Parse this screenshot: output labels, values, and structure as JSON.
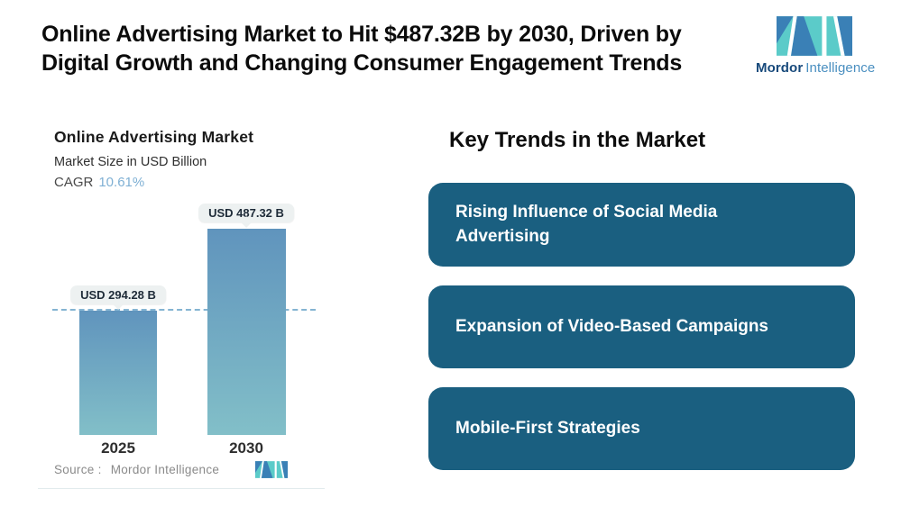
{
  "header": {
    "title_line1": "Online Advertising Market to Hit $487.32B by 2030, Driven by",
    "title_line2": "Digital Growth and Changing Consumer Engagement Trends",
    "logo": {
      "brand_bold": "Mordor",
      "brand_light": "Intelligence"
    }
  },
  "chart": {
    "title": "Online Advertising Market",
    "subtitle": "Market Size in USD Billion",
    "cagr_label": "CAGR",
    "cagr_value": "10.61%",
    "source_label": "Source :",
    "source_value": "Mordor Intelligence"
  },
  "chart_data": {
    "type": "bar",
    "title": "Online Advertising Market",
    "subtitle": "Market Size in USD Billion",
    "cagr": "10.61%",
    "categories": [
      "2025",
      "2030"
    ],
    "values": [
      294.28,
      487.32
    ],
    "bar_labels": [
      "USD 294.28 B",
      "USD 487.32 B"
    ],
    "ylabel": "USD Billion",
    "ylim": [
      0,
      520
    ],
    "grid": "off",
    "legend": "none",
    "reference_line": {
      "style": "dashed",
      "at_value": 294.28,
      "color": "#6FA8CB"
    },
    "bar_gradient": [
      "#6094BD",
      "#82BFC8"
    ]
  },
  "trends": {
    "heading": "Key Trends in the Market",
    "items": [
      {
        "label": "Rising Influence of Social Media Advertising"
      },
      {
        "label": "Expansion of Video-Based Campaigns"
      },
      {
        "label": "Mobile-First Strategies"
      }
    ]
  },
  "colors": {
    "trend_box": "#1A5F80",
    "bar_top": "#6094BD",
    "bar_bottom": "#82BFC8",
    "dashed_line": "#6FA8CB",
    "cagr_value": "#7FB0D4",
    "badge_bg": "#EDF1F1",
    "logo_teal": "#5BCBC9",
    "logo_blue": "#3A80B6",
    "brand_dark": "#17497B",
    "brand_light": "#4A8FC0"
  }
}
